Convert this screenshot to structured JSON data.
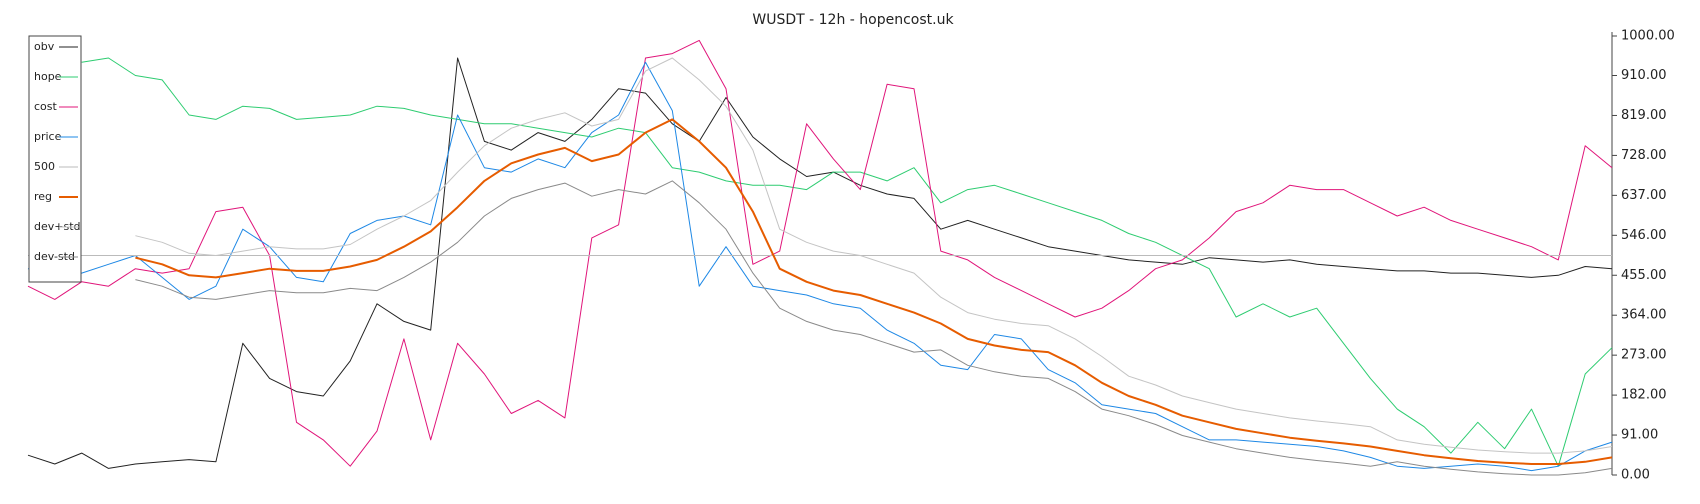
{
  "chart_data": {
    "type": "line",
    "title": "WUSDT - 12h - hopencost.uk",
    "ylim": [
      0,
      1000
    ],
    "yticks": [
      {
        "value": 0,
        "label": "0.00"
      },
      {
        "value": 91,
        "label": "91.00"
      },
      {
        "value": 182,
        "label": "182.00"
      },
      {
        "value": 273,
        "label": "273.00"
      },
      {
        "value": 364,
        "label": "364.00"
      },
      {
        "value": 455,
        "label": "455.00"
      },
      {
        "value": 546,
        "label": "546.00"
      },
      {
        "value": 637,
        "label": "637.00"
      },
      {
        "value": 728,
        "label": "728.00"
      },
      {
        "value": 819,
        "label": "819.00"
      },
      {
        "value": 910,
        "label": "910.00"
      },
      {
        "value": 1000,
        "label": "1000.00"
      }
    ],
    "yaxis_side": "right",
    "grid": false,
    "legend": "upper left",
    "series": [
      {
        "name": "obv",
        "color": "#222222",
        "values": [
          45,
          25,
          50,
          15,
          25,
          30,
          35,
          30,
          300,
          220,
          190,
          180,
          260,
          390,
          350,
          330,
          950,
          760,
          740,
          780,
          760,
          810,
          880,
          870,
          800,
          760,
          860,
          770,
          720,
          680,
          690,
          660,
          640,
          630,
          560,
          580,
          560,
          540,
          520,
          510,
          500,
          490,
          485,
          480,
          495,
          490,
          485,
          490,
          480,
          475,
          470,
          465,
          465,
          460,
          460,
          455,
          450,
          455,
          475,
          470
        ]
      },
      {
        "name": "hope",
        "color": "#2ecc71",
        "values": [
          null,
          null,
          940,
          950,
          910,
          900,
          820,
          810,
          840,
          835,
          810,
          815,
          820,
          840,
          835,
          820,
          810,
          800,
          800,
          790,
          780,
          770,
          790,
          780,
          700,
          690,
          670,
          660,
          660,
          650,
          690,
          690,
          670,
          700,
          620,
          650,
          660,
          640,
          620,
          600,
          580,
          550,
          530,
          500,
          470,
          360,
          390,
          360,
          380,
          300,
          220,
          150,
          110,
          50,
          120,
          60,
          150,
          20,
          230,
          290
        ]
      },
      {
        "name": "cost",
        "color": "#e0157a",
        "values": [
          430,
          400,
          440,
          430,
          470,
          460,
          470,
          600,
          610,
          500,
          120,
          80,
          20,
          100,
          310,
          80,
          300,
          230,
          140,
          170,
          130,
          540,
          570,
          950,
          960,
          990,
          880,
          480,
          510,
          800,
          720,
          650,
          890,
          880,
          510,
          490,
          450,
          420,
          390,
          360,
          380,
          420,
          470,
          490,
          540,
          600,
          620,
          660,
          650,
          650,
          620,
          590,
          610,
          580,
          560,
          540,
          520,
          490,
          750,
          700
        ]
      },
      {
        "name": "price",
        "color": "#1e88e5",
        "values": [
          470,
          450,
          460,
          480,
          500,
          450,
          400,
          430,
          560,
          520,
          450,
          440,
          550,
          580,
          590,
          570,
          820,
          700,
          690,
          720,
          700,
          780,
          820,
          940,
          830,
          430,
          520,
          430,
          420,
          410,
          390,
          380,
          330,
          300,
          250,
          240,
          320,
          310,
          240,
          210,
          160,
          150,
          140,
          110,
          80,
          80,
          75,
          70,
          65,
          55,
          40,
          20,
          15,
          20,
          25,
          20,
          10,
          20,
          55,
          75
        ]
      },
      {
        "name": "500",
        "color": "#bbbbbb",
        "values": [
          500,
          500,
          500,
          500,
          500,
          500,
          500,
          500,
          500,
          500,
          500,
          500,
          500,
          500,
          500,
          500,
          500,
          500,
          500,
          500,
          500,
          500,
          500,
          500,
          500,
          500,
          500,
          500,
          500,
          500,
          500,
          500,
          500,
          500,
          500,
          500,
          500,
          500,
          500,
          500,
          500,
          500,
          500,
          500,
          500,
          500,
          500,
          500,
          500,
          500,
          500,
          500,
          500,
          500,
          500,
          500,
          500,
          500,
          500,
          500
        ]
      },
      {
        "name": "reg",
        "color": "#e65c00",
        "values": [
          null,
          null,
          null,
          null,
          495,
          480,
          455,
          450,
          460,
          470,
          465,
          465,
          475,
          490,
          520,
          555,
          610,
          670,
          710,
          730,
          745,
          715,
          730,
          780,
          810,
          760,
          700,
          600,
          470,
          440,
          420,
          410,
          390,
          370,
          345,
          310,
          295,
          285,
          280,
          250,
          210,
          180,
          160,
          135,
          120,
          105,
          95,
          85,
          78,
          72,
          65,
          55,
          45,
          38,
          32,
          28,
          25,
          25,
          30,
          40
        ]
      },
      {
        "name": "dev+std",
        "color": "#c4c4c4",
        "values": [
          null,
          null,
          null,
          null,
          545,
          530,
          505,
          500,
          510,
          520,
          515,
          515,
          525,
          560,
          590,
          625,
          690,
          750,
          790,
          810,
          825,
          795,
          810,
          920,
          950,
          900,
          840,
          740,
          560,
          530,
          510,
          500,
          480,
          460,
          405,
          370,
          355,
          345,
          340,
          310,
          270,
          225,
          205,
          180,
          165,
          150,
          140,
          130,
          123,
          117,
          110,
          80,
          70,
          63,
          57,
          53,
          50,
          50,
          55,
          65
        ]
      },
      {
        "name": "dev-std",
        "color": "#8a8a8a",
        "values": [
          null,
          null,
          null,
          null,
          445,
          430,
          405,
          400,
          410,
          420,
          415,
          415,
          425,
          420,
          450,
          485,
          530,
          590,
          630,
          650,
          665,
          635,
          650,
          640,
          670,
          620,
          560,
          460,
          380,
          350,
          330,
          320,
          300,
          280,
          285,
          250,
          235,
          225,
          220,
          190,
          150,
          135,
          115,
          90,
          75,
          60,
          50,
          40,
          33,
          27,
          20,
          30,
          20,
          13,
          7,
          3,
          0,
          0,
          5,
          15
        ]
      }
    ]
  }
}
